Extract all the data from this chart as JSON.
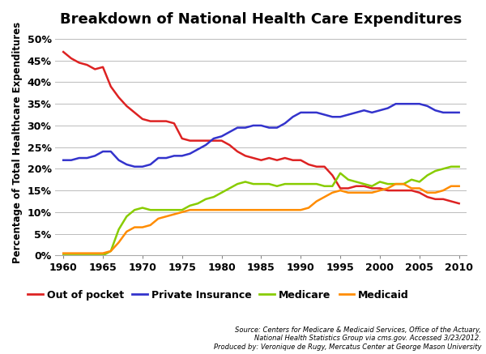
{
  "title": "Breakdown of National Health Care Expenditures",
  "ylabel": "Percentage of Total Healthcare Expenditures",
  "source_text": "Source: Centers for Medicare & Medicaid Services, Office of the Actuary,\nNational Health Statistics Group via cms.gov. Accessed 3/23/2012.\nProduced by: Veronique de Rugy, Mercatus Center at George Mason University",
  "xlim": [
    1959,
    2011
  ],
  "ylim": [
    0,
    52
  ],
  "yticks": [
    0,
    5,
    10,
    15,
    20,
    25,
    30,
    35,
    40,
    45,
    50
  ],
  "xticks": [
    1960,
    1965,
    1970,
    1975,
    1980,
    1985,
    1990,
    1995,
    2000,
    2005,
    2010
  ],
  "out_of_pocket": {
    "color": "#DD2222",
    "label": "Out of pocket",
    "years": [
      1960,
      1961,
      1962,
      1963,
      1964,
      1965,
      1966,
      1967,
      1968,
      1969,
      1970,
      1971,
      1972,
      1973,
      1974,
      1975,
      1976,
      1977,
      1978,
      1979,
      1980,
      1981,
      1982,
      1983,
      1984,
      1985,
      1986,
      1987,
      1988,
      1989,
      1990,
      1991,
      1992,
      1993,
      1994,
      1995,
      1996,
      1997,
      1998,
      1999,
      2000,
      2001,
      2002,
      2003,
      2004,
      2005,
      2006,
      2007,
      2008,
      2009,
      2010
    ],
    "values": [
      47.0,
      45.5,
      44.5,
      44.0,
      43.0,
      43.5,
      39.0,
      36.5,
      34.5,
      33.0,
      31.5,
      31.0,
      31.0,
      31.0,
      30.5,
      27.0,
      26.5,
      26.5,
      26.5,
      26.5,
      26.5,
      25.5,
      24.0,
      23.0,
      22.5,
      22.0,
      22.5,
      22.0,
      22.5,
      22.0,
      22.0,
      21.0,
      20.5,
      20.5,
      18.5,
      15.5,
      15.5,
      16.0,
      16.0,
      15.5,
      15.5,
      15.0,
      15.0,
      15.0,
      15.0,
      14.5,
      13.5,
      13.0,
      13.0,
      12.5,
      12.0
    ]
  },
  "private_insurance": {
    "color": "#3333CC",
    "label": "Private Insurance",
    "years": [
      1960,
      1961,
      1962,
      1963,
      1964,
      1965,
      1966,
      1967,
      1968,
      1969,
      1970,
      1971,
      1972,
      1973,
      1974,
      1975,
      1976,
      1977,
      1978,
      1979,
      1980,
      1981,
      1982,
      1983,
      1984,
      1985,
      1986,
      1987,
      1988,
      1989,
      1990,
      1991,
      1992,
      1993,
      1994,
      1995,
      1996,
      1997,
      1998,
      1999,
      2000,
      2001,
      2002,
      2003,
      2004,
      2005,
      2006,
      2007,
      2008,
      2009,
      2010
    ],
    "values": [
      22.0,
      22.0,
      22.5,
      22.5,
      23.0,
      24.0,
      24.0,
      22.0,
      21.0,
      20.5,
      20.5,
      21.0,
      22.5,
      22.5,
      23.0,
      23.0,
      23.5,
      24.5,
      25.5,
      27.0,
      27.5,
      28.5,
      29.5,
      29.5,
      30.0,
      30.0,
      29.5,
      29.5,
      30.5,
      32.0,
      33.0,
      33.0,
      33.0,
      32.5,
      32.0,
      32.0,
      32.5,
      33.0,
      33.5,
      33.0,
      33.5,
      34.0,
      35.0,
      35.0,
      35.0,
      35.0,
      34.5,
      33.5,
      33.0,
      33.0,
      33.0
    ]
  },
  "medicare": {
    "color": "#88CC00",
    "label": "Medicare",
    "years": [
      1960,
      1961,
      1962,
      1963,
      1964,
      1965,
      1966,
      1967,
      1968,
      1969,
      1970,
      1971,
      1972,
      1973,
      1974,
      1975,
      1976,
      1977,
      1978,
      1979,
      1980,
      1981,
      1982,
      1983,
      1984,
      1985,
      1986,
      1987,
      1988,
      1989,
      1990,
      1991,
      1992,
      1993,
      1994,
      1995,
      1996,
      1997,
      1998,
      1999,
      2000,
      2001,
      2002,
      2003,
      2004,
      2005,
      2006,
      2007,
      2008,
      2009,
      2010
    ],
    "values": [
      0.0,
      0.0,
      0.0,
      0.0,
      0.0,
      0.0,
      1.0,
      6.0,
      9.0,
      10.5,
      11.0,
      10.5,
      10.5,
      10.5,
      10.5,
      10.5,
      11.5,
      12.0,
      13.0,
      13.5,
      14.5,
      15.5,
      16.5,
      17.0,
      16.5,
      16.5,
      16.5,
      16.0,
      16.5,
      16.5,
      16.5,
      16.5,
      16.5,
      16.0,
      16.0,
      19.0,
      17.5,
      17.0,
      16.5,
      16.0,
      17.0,
      16.5,
      16.5,
      16.5,
      17.5,
      17.0,
      18.5,
      19.5,
      20.0,
      20.5,
      20.5
    ]
  },
  "medicaid": {
    "color": "#FF8C00",
    "label": "Medicaid",
    "years": [
      1960,
      1961,
      1962,
      1963,
      1964,
      1965,
      1966,
      1967,
      1968,
      1969,
      1970,
      1971,
      1972,
      1973,
      1974,
      1975,
      1976,
      1977,
      1978,
      1979,
      1980,
      1981,
      1982,
      1983,
      1984,
      1985,
      1986,
      1987,
      1988,
      1989,
      1990,
      1991,
      1992,
      1993,
      1994,
      1995,
      1996,
      1997,
      1998,
      1999,
      2000,
      2001,
      2002,
      2003,
      2004,
      2005,
      2006,
      2007,
      2008,
      2009,
      2010
    ],
    "values": [
      0.5,
      0.5,
      0.5,
      0.5,
      0.5,
      0.5,
      1.0,
      3.0,
      5.5,
      6.5,
      6.5,
      7.0,
      8.5,
      9.0,
      9.5,
      10.0,
      10.5,
      10.5,
      10.5,
      10.5,
      10.5,
      10.5,
      10.5,
      10.5,
      10.5,
      10.5,
      10.5,
      10.5,
      10.5,
      10.5,
      10.5,
      11.0,
      12.5,
      13.5,
      14.5,
      15.0,
      14.5,
      14.5,
      14.5,
      14.5,
      15.0,
      15.5,
      16.5,
      16.5,
      15.5,
      15.5,
      14.5,
      14.5,
      15.0,
      16.0,
      16.0
    ]
  }
}
